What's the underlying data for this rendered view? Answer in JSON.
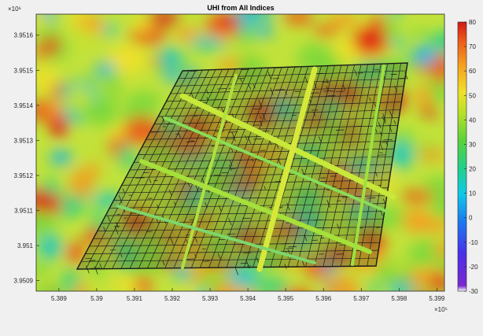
{
  "chart_data": {
    "type": "heatmap",
    "title": "UHI from All Indices",
    "xlabel": "",
    "ylabel": "",
    "x_exponent_label": "×10⁵",
    "y_exponent_label": "×10⁶",
    "x_ticks": [
      "5.389",
      "5.39",
      "5.391",
      "5.392",
      "5.393",
      "5.394",
      "5.395",
      "5.396",
      "5.397",
      "5.398",
      "5.399"
    ],
    "y_ticks": [
      "3.9516",
      "3.9515",
      "3.9514",
      "3.9513",
      "3.9512",
      "3.9511",
      "3.951",
      "3.9509"
    ],
    "xlim": [
      5.3884,
      5.3992
    ],
    "ylim": [
      3.95087,
      3.95166
    ],
    "colorbar": {
      "ticks": [
        "80",
        "70",
        "60",
        "50",
        "40",
        "30",
        "20",
        "10",
        "0",
        "-10",
        "-20",
        "-30"
      ],
      "range": [
        -30,
        80
      ],
      "colormap": [
        "#5a1ec8",
        "#1a5ef0",
        "#1ac8e6",
        "#2ed282",
        "#7fe030",
        "#e6e62a",
        "#f29a1e",
        "#e02418"
      ]
    },
    "grid": false,
    "overlay": "black building/parcel outlines on a rotated urban block"
  }
}
